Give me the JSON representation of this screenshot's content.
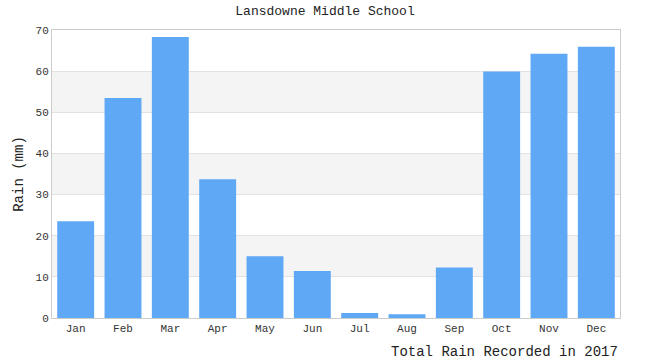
{
  "chart_data": {
    "type": "bar",
    "title": "Lansdowne Middle School",
    "x_label": "Total Rain Recorded in 2017",
    "y_label": "Rain (mm)",
    "categories": [
      "Jan",
      "Feb",
      "Mar",
      "Apr",
      "May",
      "Jun",
      "Jul",
      "Aug",
      "Sep",
      "Oct",
      "Nov",
      "Dec"
    ],
    "values": [
      23.5,
      53.5,
      68.3,
      33.7,
      15.0,
      11.4,
      1.2,
      0.9,
      12.3,
      59.9,
      64.2,
      65.9
    ],
    "color": "#5fa8f6",
    "ylim": [
      0,
      70
    ],
    "yticks": [
      0,
      10,
      20,
      30,
      40,
      50,
      60,
      70
    ],
    "grid": true
  }
}
